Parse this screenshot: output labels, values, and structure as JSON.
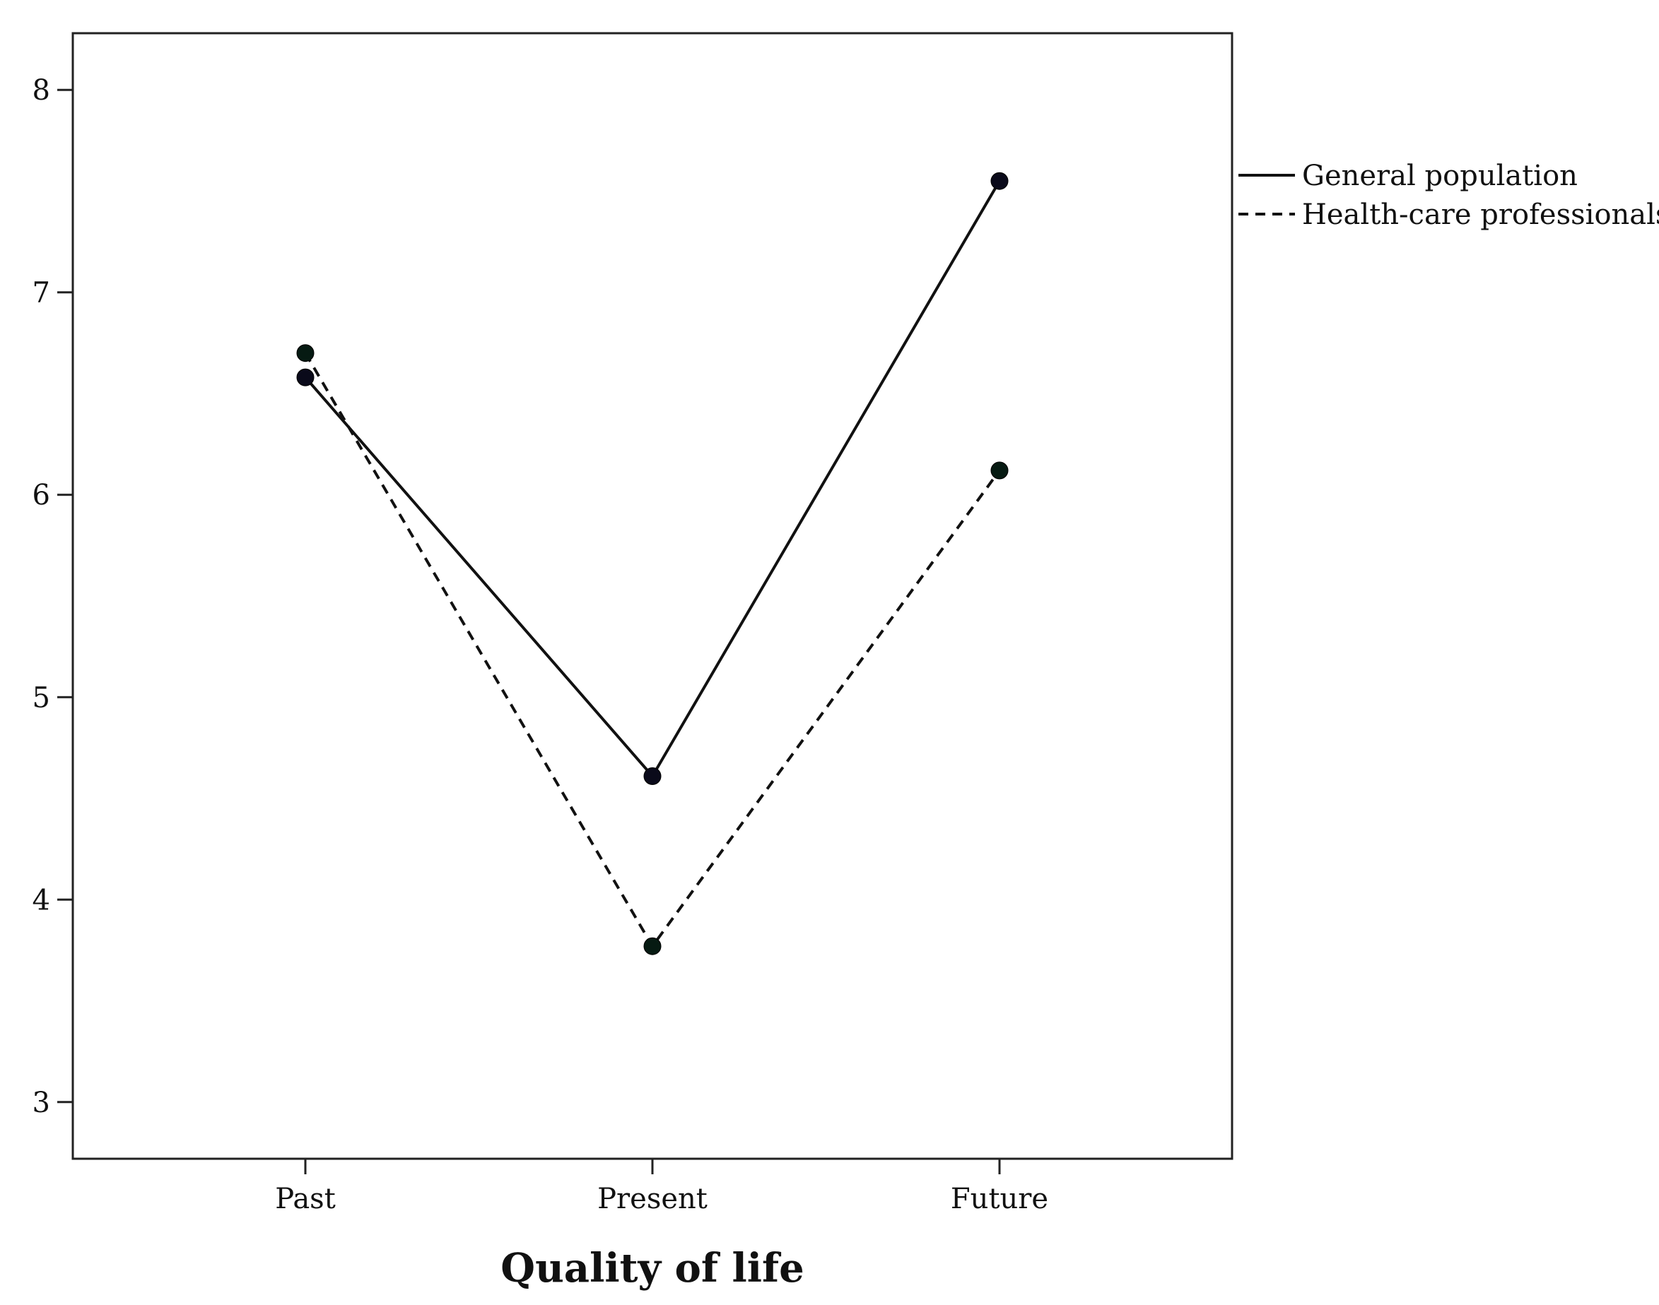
{
  "chart_data": {
    "type": "line",
    "title": "",
    "xlabel": "Quality of life",
    "ylabel": "",
    "categories": [
      "Past",
      "Present",
      "Future"
    ],
    "ylim": [
      2.72,
      8.28
    ],
    "yticks": [
      "3",
      "4",
      "5",
      "6",
      "7",
      "8"
    ],
    "grid": false,
    "legend_placement": "right-outside-top",
    "series": [
      {
        "name": "General population",
        "values": [
          6.58,
          4.61,
          7.55
        ],
        "line_style": "solid",
        "color": "#111111",
        "marker_color": "#0a0a1a"
      },
      {
        "name": "Health-care professionals",
        "values": [
          6.7,
          3.77,
          6.12
        ],
        "line_style": "dashed",
        "color": "#111111",
        "marker_color": "#061a12"
      }
    ]
  }
}
